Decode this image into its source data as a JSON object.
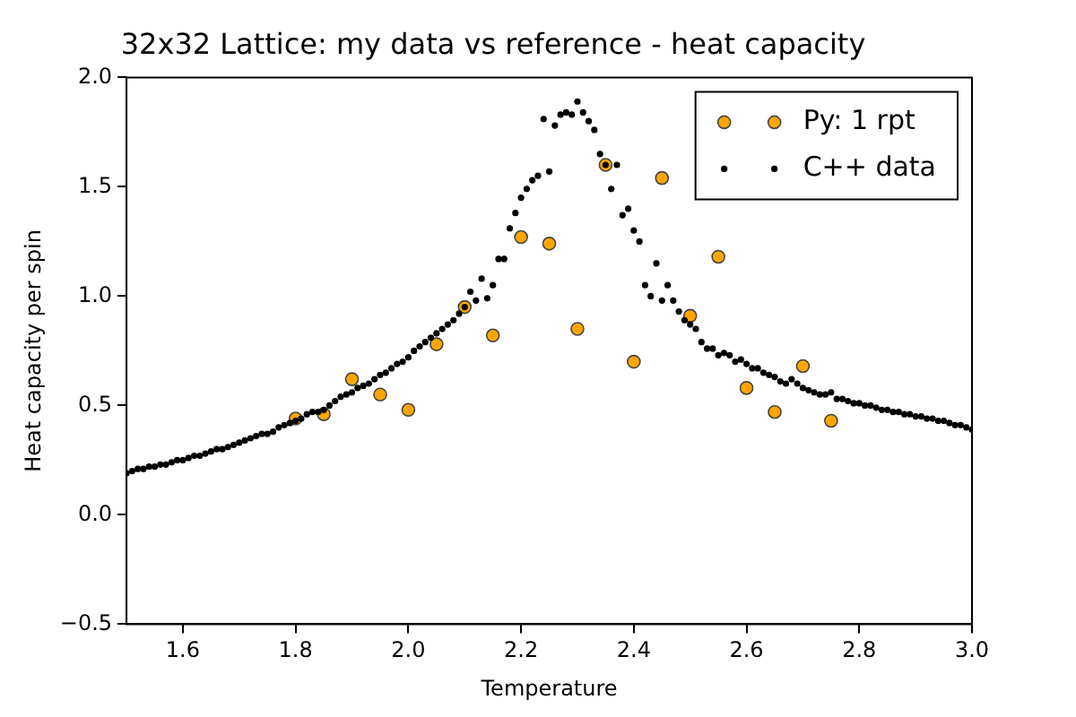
{
  "chart_data": {
    "type": "scatter",
    "title": "32x32 Lattice: my data vs reference - heat capacity",
    "xlabel": "Temperature",
    "ylabel": "Heat capacity per spin",
    "xlim": [
      1.5,
      3.0
    ],
    "ylim": [
      -0.5,
      2.0
    ],
    "xticks": [
      {
        "value": 1.6,
        "label": "1.6"
      },
      {
        "value": 1.8,
        "label": "1.8"
      },
      {
        "value": 2.0,
        "label": "2.0"
      },
      {
        "value": 2.2,
        "label": "2.2"
      },
      {
        "value": 2.4,
        "label": "2.4"
      },
      {
        "value": 2.6,
        "label": "2.6"
      },
      {
        "value": 2.8,
        "label": "2.8"
      },
      {
        "value": 3.0,
        "label": "3.0"
      }
    ],
    "yticks": [
      {
        "value": -0.5,
        "label": "−0.5"
      },
      {
        "value": 0,
        "label": "0.0"
      },
      {
        "value": 0.5,
        "label": "0.5"
      },
      {
        "value": 1.0,
        "label": "1.0"
      },
      {
        "value": 1.5,
        "label": "1.5"
      },
      {
        "value": 2.0,
        "label": "2.0"
      }
    ],
    "grid": false,
    "legend": "top right",
    "series": [
      {
        "name": "Py: 1 rpt",
        "color": "#ffa500",
        "marker": "circle",
        "x": [
          1.8,
          1.85,
          1.9,
          1.95,
          2.0,
          2.05,
          2.1,
          2.15,
          2.2,
          2.25,
          2.3,
          2.35,
          2.4,
          2.45,
          2.5,
          2.55,
          2.6,
          2.65,
          2.7,
          2.75
        ],
        "values": [
          0.44,
          0.46,
          0.62,
          0.55,
          0.48,
          0.78,
          0.95,
          0.82,
          1.27,
          1.24,
          0.85,
          1.6,
          0.7,
          1.54,
          0.91,
          1.18,
          0.58,
          0.47,
          0.68,
          0.43
        ]
      },
      {
        "name": "C++ data",
        "color": "#000000",
        "marker": "circle",
        "x": [
          1.5,
          1.51,
          1.52,
          1.53,
          1.54,
          1.55,
          1.56,
          1.57,
          1.58,
          1.59,
          1.6,
          1.61,
          1.62,
          1.63,
          1.64,
          1.65,
          1.66,
          1.67,
          1.68,
          1.69,
          1.7,
          1.71,
          1.72,
          1.73,
          1.74,
          1.75,
          1.76,
          1.77,
          1.78,
          1.79,
          1.8,
          1.81,
          1.82,
          1.83,
          1.84,
          1.85,
          1.86,
          1.87,
          1.88,
          1.89,
          1.9,
          1.91,
          1.92,
          1.93,
          1.94,
          1.95,
          1.96,
          1.97,
          1.98,
          1.99,
          2.0,
          2.01,
          2.02,
          2.03,
          2.04,
          2.05,
          2.06,
          2.07,
          2.08,
          2.09,
          2.1,
          2.11,
          2.12,
          2.13,
          2.14,
          2.15,
          2.16,
          2.17,
          2.18,
          2.19,
          2.2,
          2.21,
          2.22,
          2.23,
          2.24,
          2.25,
          2.26,
          2.27,
          2.28,
          2.29,
          2.3,
          2.31,
          2.32,
          2.33,
          2.34,
          2.35,
          2.36,
          2.37,
          2.38,
          2.39,
          2.4,
          2.41,
          2.42,
          2.43,
          2.44,
          2.45,
          2.46,
          2.47,
          2.48,
          2.49,
          2.5,
          2.51,
          2.52,
          2.53,
          2.54,
          2.55,
          2.56,
          2.57,
          2.58,
          2.59,
          2.6,
          2.61,
          2.62,
          2.63,
          2.64,
          2.65,
          2.66,
          2.67,
          2.68,
          2.69,
          2.7,
          2.71,
          2.72,
          2.73,
          2.74,
          2.75,
          2.76,
          2.77,
          2.78,
          2.79,
          2.8,
          2.81,
          2.82,
          2.83,
          2.84,
          2.85,
          2.86,
          2.87,
          2.88,
          2.89,
          2.9,
          2.91,
          2.92,
          2.93,
          2.94,
          2.95,
          2.96,
          2.97,
          2.98,
          2.99,
          3.0
        ],
        "values": [
          0.19,
          0.2,
          0.21,
          0.21,
          0.22,
          0.22,
          0.23,
          0.23,
          0.24,
          0.25,
          0.25,
          0.26,
          0.27,
          0.27,
          0.28,
          0.29,
          0.3,
          0.3,
          0.31,
          0.32,
          0.33,
          0.34,
          0.35,
          0.36,
          0.37,
          0.37,
          0.38,
          0.4,
          0.41,
          0.42,
          0.43,
          0.44,
          0.46,
          0.47,
          0.47,
          0.48,
          0.5,
          0.52,
          0.54,
          0.55,
          0.56,
          0.58,
          0.59,
          0.6,
          0.62,
          0.64,
          0.65,
          0.67,
          0.69,
          0.7,
          0.72,
          0.75,
          0.77,
          0.79,
          0.81,
          0.83,
          0.85,
          0.87,
          0.89,
          0.92,
          0.95,
          1.02,
          0.98,
          1.08,
          0.99,
          1.05,
          1.17,
          1.17,
          1.31,
          1.38,
          1.45,
          1.49,
          1.53,
          1.55,
          1.81,
          1.57,
          1.78,
          1.83,
          1.84,
          1.83,
          1.89,
          1.84,
          1.8,
          1.76,
          1.65,
          1.6,
          1.49,
          1.6,
          1.37,
          1.4,
          1.3,
          1.25,
          1.05,
          1.0,
          1.15,
          0.98,
          1.05,
          0.98,
          0.93,
          0.89,
          0.87,
          0.85,
          0.79,
          0.76,
          0.76,
          0.73,
          0.74,
          0.73,
          0.7,
          0.71,
          0.69,
          0.67,
          0.67,
          0.65,
          0.64,
          0.63,
          0.61,
          0.6,
          0.62,
          0.6,
          0.58,
          0.57,
          0.56,
          0.55,
          0.55,
          0.56,
          0.53,
          0.53,
          0.52,
          0.51,
          0.51,
          0.5,
          0.5,
          0.49,
          0.48,
          0.48,
          0.47,
          0.47,
          0.46,
          0.46,
          0.45,
          0.45,
          0.44,
          0.44,
          0.43,
          0.43,
          0.42,
          0.41,
          0.41,
          0.4,
          0.39
        ]
      }
    ]
  }
}
